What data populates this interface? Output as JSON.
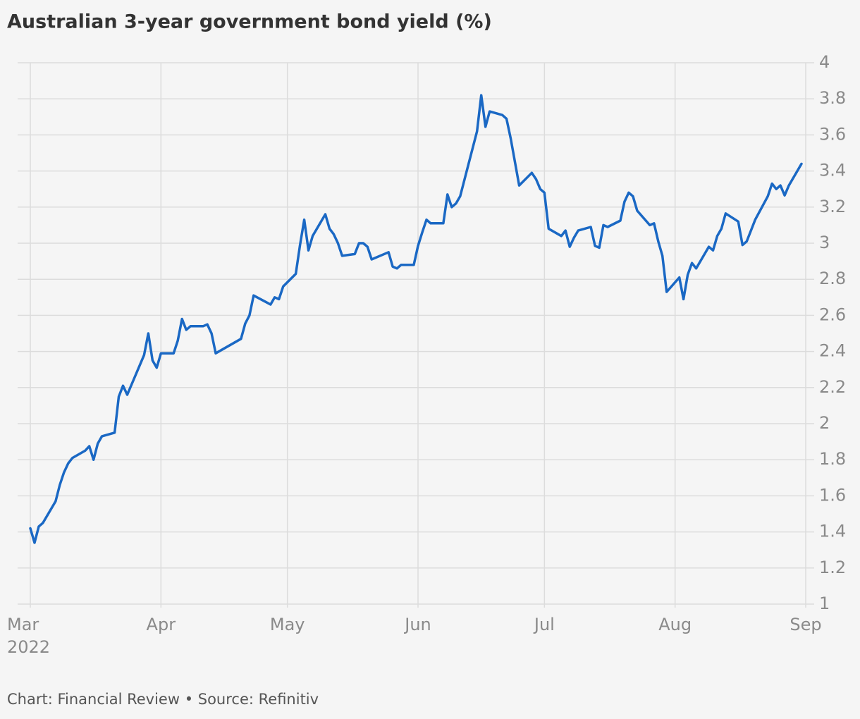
{
  "chart_data": {
    "type": "line",
    "title": "Australian 3-year government bond yield (%)",
    "source": "Chart: Financial Review • Source: Refinitiv",
    "year_label": "2022",
    "x": [
      0,
      1,
      2,
      3,
      6,
      7,
      8,
      9,
      10,
      13,
      14,
      15,
      16,
      17,
      20,
      21,
      22,
      23,
      27,
      28,
      29,
      30,
      31,
      34,
      35,
      36,
      37,
      38,
      41,
      42,
      43,
      44,
      50,
      51,
      52,
      53,
      57,
      58,
      59,
      60,
      63,
      64,
      65,
      66,
      67,
      70,
      71,
      72,
      73,
      74,
      77,
      78,
      79,
      80,
      81,
      85,
      86,
      87,
      88,
      91,
      92,
      93,
      94,
      95,
      98,
      99,
      100,
      101,
      102,
      106,
      107,
      108,
      109,
      112,
      113,
      114,
      115,
      116,
      119,
      120,
      121,
      122,
      123,
      126,
      127,
      128,
      129,
      130,
      133,
      134,
      135,
      136,
      137,
      140,
      141,
      142,
      143,
      144,
      147,
      148,
      149,
      150,
      151,
      154,
      155,
      156,
      157,
      158,
      161,
      162,
      163,
      164,
      165,
      168,
      169,
      170,
      171,
      172,
      175,
      176,
      177,
      178,
      179,
      180,
      183
    ],
    "series": [
      {
        "name": "3-year yield",
        "color": "#1a68c4",
        "values": [
          1.42,
          1.34,
          1.43,
          1.45,
          1.57,
          1.66,
          1.73,
          1.78,
          1.81,
          1.85,
          1.875,
          1.8,
          1.89,
          1.93,
          1.95,
          2.15,
          2.21,
          2.16,
          2.38,
          2.5,
          2.35,
          2.31,
          2.39,
          2.39,
          2.46,
          2.58,
          2.52,
          2.54,
          2.54,
          2.55,
          2.5,
          2.39,
          2.47,
          2.555,
          2.6,
          2.71,
          2.66,
          2.7,
          2.69,
          2.76,
          2.83,
          2.99,
          3.13,
          2.96,
          3.04,
          3.16,
          3.08,
          3.05,
          3.0,
          2.93,
          2.94,
          3.0,
          3.0,
          2.98,
          2.91,
          2.95,
          2.87,
          2.86,
          2.88,
          2.88,
          2.985,
          3.06,
          3.13,
          3.11,
          3.11,
          3.27,
          3.2,
          3.22,
          3.26,
          3.62,
          3.82,
          3.645,
          3.73,
          3.71,
          3.69,
          3.58,
          3.45,
          3.32,
          3.39,
          3.355,
          3.3,
          3.28,
          3.08,
          3.04,
          3.07,
          2.98,
          3.03,
          3.07,
          3.09,
          2.985,
          2.975,
          3.1,
          3.09,
          3.125,
          3.23,
          3.28,
          3.26,
          3.18,
          3.1,
          3.11,
          3.01,
          2.93,
          2.73,
          2.81,
          2.69,
          2.825,
          2.89,
          2.86,
          2.98,
          2.96,
          3.04,
          3.08,
          3.165,
          3.12,
          2.99,
          3.01,
          3.07,
          3.13,
          3.26,
          3.33,
          3.3,
          3.32,
          3.265,
          3.32,
          3.44
        ]
      }
    ],
    "xlim": [
      0,
      184
    ],
    "xticks": [
      {
        "value": 0,
        "label": "Mar"
      },
      {
        "value": 31,
        "label": "Apr"
      },
      {
        "value": 61,
        "label": "May"
      },
      {
        "value": 92,
        "label": "Jun"
      },
      {
        "value": 122,
        "label": "Jul"
      },
      {
        "value": 153,
        "label": "Aug"
      },
      {
        "value": 184,
        "label": "Sep"
      }
    ],
    "ylim": [
      1,
      4
    ],
    "yticks": [
      1,
      1.2,
      1.4,
      1.6,
      1.8,
      2,
      2.2,
      2.4,
      2.6,
      2.8,
      3,
      3.2,
      3.4,
      3.6,
      3.8,
      4
    ],
    "grid": true
  }
}
